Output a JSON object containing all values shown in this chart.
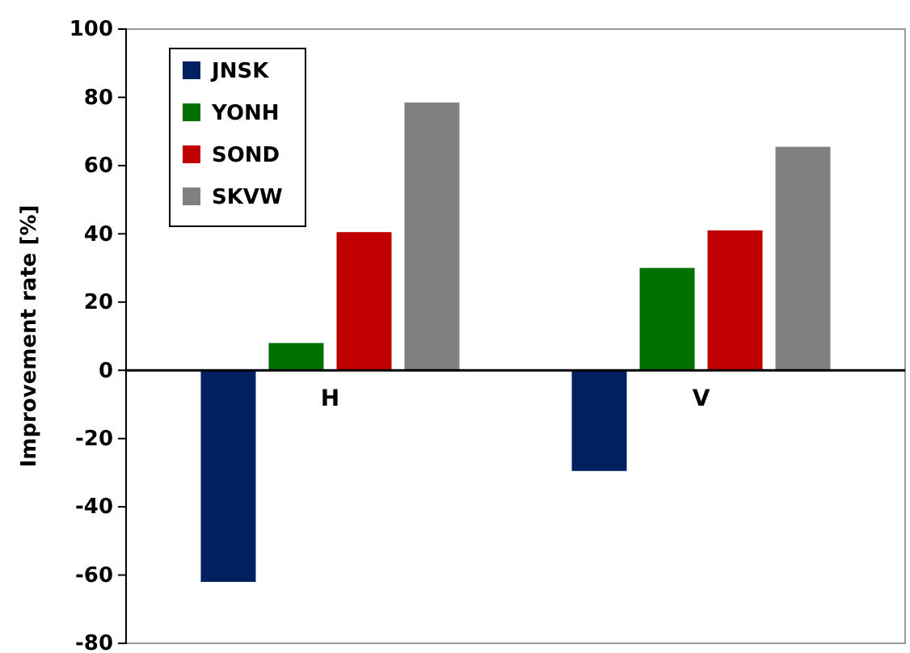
{
  "chart_data": {
    "type": "bar",
    "ylabel": "Improvement rate [%]",
    "categories": [
      "H",
      "V"
    ],
    "series": [
      {
        "name": "JNSK",
        "color": "#002060",
        "values": [
          -62,
          -29.5
        ]
      },
      {
        "name": "YONH",
        "color": "#007000",
        "values": [
          8,
          30
        ]
      },
      {
        "name": "SOND",
        "color": "#c00000",
        "values": [
          40.5,
          41
        ]
      },
      {
        "name": "SKVW",
        "color": "#808080",
        "values": [
          78.5,
          65.5
        ]
      }
    ],
    "ylim": [
      -80,
      100
    ],
    "yticks": [
      -80,
      -60,
      -40,
      -20,
      0,
      20,
      40,
      60,
      80,
      100
    ],
    "grid": false,
    "legend": "top left"
  }
}
